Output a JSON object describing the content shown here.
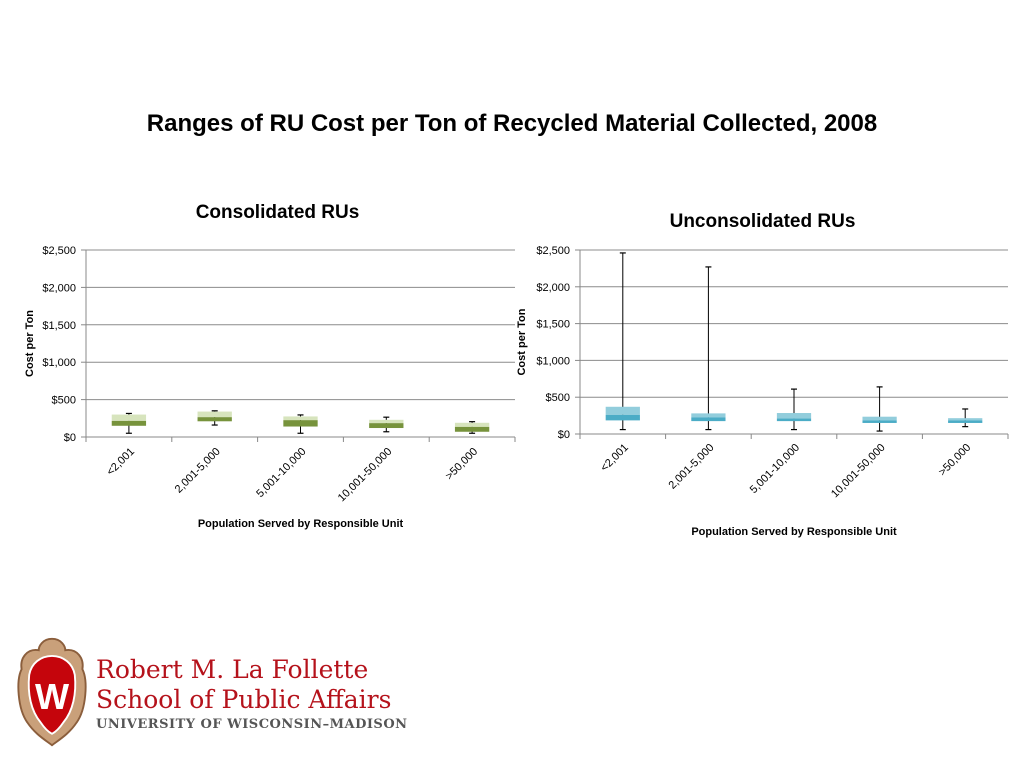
{
  "slide_title": "Ranges of RU Cost per Ton of Recycled Material Collected, 2008",
  "logo": {
    "line1": "Robert M. La Follette",
    "line2": "School of Public Affairs",
    "line3": "UNIVERSITY OF WISCONSIN–MADISON",
    "icon": "uw-crest-icon"
  },
  "chart_data": [
    {
      "type": "boxplot",
      "title": "Consolidated RUs",
      "xlabel": "Population Served by Responsible Unit",
      "ylabel": "Cost per Ton",
      "ylim": [
        0,
        2500
      ],
      "yticks": [
        "$0",
        "$500",
        "$1,000",
        "$1,500",
        "$2,000",
        "$2,500"
      ],
      "ytick_values": [
        0,
        500,
        1000,
        1500,
        2000,
        2500
      ],
      "grid": true,
      "colors": {
        "lower_box": "#77933c",
        "upper_box": "#d7e4bd"
      },
      "categories": [
        "<2,001",
        "2,001-5,000",
        "5,001-10,000",
        "10,001-50,000",
        ">50,000"
      ],
      "series": [
        {
          "min": [
            50,
            160,
            50,
            70,
            50
          ],
          "q1": [
            150,
            210,
            140,
            120,
            70
          ],
          "median": [
            215,
            265,
            225,
            185,
            135
          ],
          "q3": [
            300,
            340,
            275,
            230,
            190
          ],
          "max": [
            315,
            350,
            295,
            265,
            205
          ]
        }
      ]
    },
    {
      "type": "boxplot",
      "title": "Unconsolidated RUs",
      "xlabel": "Population Served by Responsible Unit",
      "ylabel": "Cost per Ton",
      "ylim": [
        0,
        2500
      ],
      "yticks": [
        "$0",
        "$500",
        "$1,000",
        "$1,500",
        "$2,000",
        "$2,500"
      ],
      "ytick_values": [
        0,
        500,
        1000,
        1500,
        2000,
        2500
      ],
      "grid": true,
      "colors": {
        "lower_box": "#4bacc6",
        "upper_box": "#92cddc"
      },
      "categories": [
        "<2,001",
        "2,001-5,000",
        "5,001-10,000",
        "10,001-50,000",
        ">50,000"
      ],
      "series": [
        {
          "min": [
            60,
            60,
            60,
            40,
            100
          ],
          "q1": [
            185,
            175,
            175,
            150,
            150
          ],
          "median": [
            260,
            225,
            210,
            185,
            185
          ],
          "q3": [
            370,
            280,
            285,
            235,
            215
          ],
          "max": [
            2460,
            2270,
            610,
            640,
            340
          ]
        }
      ]
    }
  ]
}
